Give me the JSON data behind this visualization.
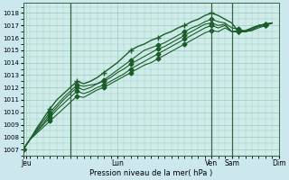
{
  "background_color": "#cce8ee",
  "plot_bg_color": "#d0ecea",
  "grid_color": "#99ccbb",
  "line_color": "#1a5c2a",
  "marker_color": "#1a5c2a",
  "xlabel": "Pression niveau de la mer( hPa )",
  "ylim": [
    1006.5,
    1018.8
  ],
  "yticks": [
    1007,
    1008,
    1009,
    1010,
    1011,
    1012,
    1013,
    1014,
    1015,
    1016,
    1017,
    1018
  ],
  "xlim": [
    0,
    38
  ],
  "vline_positions": [
    7,
    28,
    31
  ],
  "tick_x_positions": [
    0.5,
    14,
    28,
    31,
    38
  ],
  "tick_x_labels": [
    "Jeu",
    "Lun",
    "Ven",
    "Sam",
    "Dim"
  ],
  "series1": [
    1007.0,
    1007.8,
    1008.6,
    1009.3,
    1010.0,
    1010.6,
    1011.2,
    1011.7,
    1012.2,
    1012.1,
    1012.2,
    1012.3,
    1012.5,
    1012.8,
    1013.2,
    1013.5,
    1013.9,
    1014.2,
    1014.5,
    1014.8,
    1015.1,
    1015.3,
    1015.6,
    1015.9,
    1016.2,
    1016.5,
    1016.8,
    1017.1,
    1017.2,
    1017.0,
    1017.1,
    1016.5,
    1016.6,
    1016.6,
    1016.8,
    1017.0,
    1017.1,
    1017.2
  ],
  "series2": [
    1007.0,
    1007.8,
    1008.5,
    1009.1,
    1009.8,
    1010.4,
    1011.0,
    1011.5,
    1012.0,
    1011.8,
    1012.0,
    1012.3,
    1012.6,
    1013.0,
    1013.4,
    1013.8,
    1014.2,
    1014.6,
    1015.0,
    1015.2,
    1015.4,
    1015.6,
    1015.9,
    1016.2,
    1016.5,
    1016.8,
    1017.0,
    1017.3,
    1017.5,
    1017.3,
    1017.2,
    1016.8,
    1016.7,
    1016.5,
    1016.6,
    1017.0,
    1017.1,
    1017.2
  ],
  "series3": [
    1007.0,
    1007.8,
    1008.7,
    1009.5,
    1010.3,
    1011.0,
    1011.5,
    1012.0,
    1012.5,
    1012.3,
    1012.5,
    1012.8,
    1013.2,
    1013.6,
    1014.0,
    1014.5,
    1015.0,
    1015.3,
    1015.5,
    1015.8,
    1016.0,
    1016.3,
    1016.5,
    1016.8,
    1017.0,
    1017.3,
    1017.5,
    1017.8,
    1018.0,
    1017.8,
    1017.5,
    1017.2,
    1016.5,
    1016.5,
    1016.8,
    1017.0,
    1017.1,
    1017.2
  ],
  "series4": [
    1007.0,
    1007.8,
    1008.4,
    1009.0,
    1009.6,
    1010.2,
    1010.7,
    1011.2,
    1011.7,
    1011.5,
    1011.7,
    1012.0,
    1012.2,
    1012.5,
    1012.8,
    1013.1,
    1013.5,
    1013.8,
    1014.1,
    1014.4,
    1014.7,
    1015.0,
    1015.3,
    1015.6,
    1015.9,
    1016.2,
    1016.5,
    1016.8,
    1017.0,
    1016.8,
    1017.0,
    1016.5,
    1016.5,
    1016.5,
    1016.7,
    1016.9,
    1017.0,
    1017.2
  ],
  "series5": [
    1007.0,
    1007.8,
    1008.3,
    1008.8,
    1009.3,
    1009.8,
    1010.3,
    1010.8,
    1011.3,
    1011.2,
    1011.5,
    1011.8,
    1012.0,
    1012.3,
    1012.6,
    1012.9,
    1013.2,
    1013.5,
    1013.8,
    1014.0,
    1014.3,
    1014.6,
    1014.9,
    1015.2,
    1015.5,
    1015.8,
    1016.1,
    1016.4,
    1016.6,
    1016.5,
    1016.8,
    1016.5,
    1016.5,
    1016.5,
    1016.6,
    1016.8,
    1017.0,
    1017.2
  ]
}
